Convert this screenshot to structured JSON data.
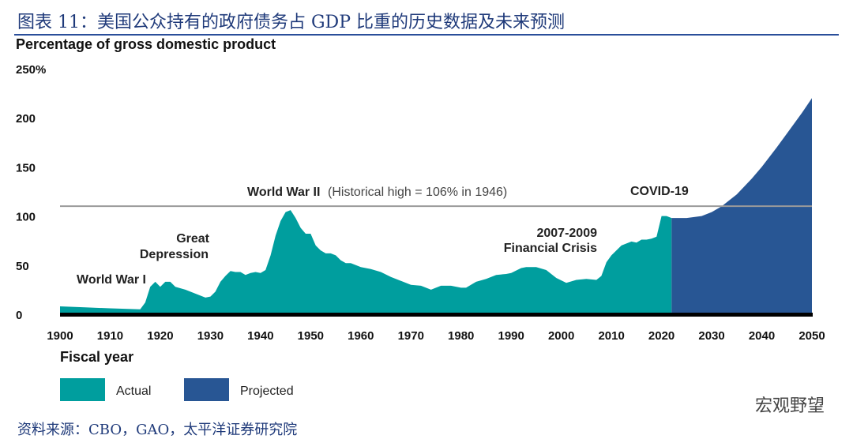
{
  "header": {
    "title": "图表 11：美国公众持有的政府债务占 GDP 比重的历史数据及未来预测"
  },
  "footer": {
    "source": "资料来源：CBO，GAO，太平洋证券研究院",
    "watermark": "宏观野望"
  },
  "chart_data": {
    "type": "area",
    "ylabel": "Percentage of gross domestic product",
    "xlabel": "Fiscal year",
    "xlim": [
      1900,
      2050
    ],
    "ylim": [
      0,
      250
    ],
    "yticks": [
      "0",
      "50",
      "100",
      "150",
      "200",
      "250%"
    ],
    "ytick_values": [
      0,
      50,
      100,
      150,
      200,
      250
    ],
    "xticks": [
      1900,
      1910,
      1920,
      1930,
      1940,
      1950,
      1960,
      1970,
      1980,
      1990,
      2000,
      2010,
      2020,
      2030,
      2040,
      2050
    ],
    "reference_line": {
      "value": 106
    },
    "annotations": [
      {
        "text": "World War I"
      },
      {
        "text": "Great"
      },
      {
        "text": "Depression"
      },
      {
        "text": "World War II"
      },
      {
        "text": "(Historical high = 106% in 1946)"
      },
      {
        "text": "2007-2009"
      },
      {
        "text": "Financial Crisis"
      },
      {
        "text": "COVID-19"
      }
    ],
    "colors": {
      "Actual": "#009e9e",
      "Projected": "#285694",
      "reference": "#9a9a9a"
    },
    "series": [
      {
        "name": "Actual",
        "x": [
          1900,
          1905,
          1910,
          1916,
          1917,
          1918,
          1919,
          1920,
          1921,
          1922,
          1923,
          1925,
          1927,
          1929,
          1930,
          1931,
          1932,
          1933,
          1934,
          1935,
          1936,
          1937,
          1938,
          1939,
          1940,
          1941,
          1942,
          1943,
          1944,
          1945,
          1946,
          1947,
          1948,
          1949,
          1950,
          1951,
          1952,
          1953,
          1954,
          1955,
          1956,
          1957,
          1958,
          1959,
          1960,
          1962,
          1964,
          1966,
          1968,
          1970,
          1972,
          1974,
          1976,
          1978,
          1980,
          1981,
          1983,
          1985,
          1987,
          1989,
          1990,
          1992,
          1993,
          1995,
          1997,
          1999,
          2001,
          2003,
          2005,
          2007,
          2008,
          2009,
          2010,
          2012,
          2014,
          2015,
          2016,
          2017,
          2018,
          2019,
          2020,
          2021,
          2022
        ],
        "values": [
          8,
          7,
          6,
          5,
          12,
          28,
          33,
          28,
          33,
          33,
          28,
          25,
          21,
          17,
          18,
          23,
          33,
          39,
          44,
          43,
          43,
          40,
          42,
          43,
          42,
          45,
          60,
          80,
          95,
          104,
          106,
          98,
          88,
          82,
          82,
          70,
          65,
          62,
          62,
          60,
          55,
          52,
          52,
          50,
          48,
          46,
          43,
          38,
          34,
          30,
          29,
          25,
          29,
          29,
          27,
          27,
          33,
          36,
          40,
          41,
          42,
          47,
          48,
          48,
          45,
          37,
          32,
          35,
          36,
          35,
          39,
          53,
          60,
          70,
          74,
          73,
          76,
          76,
          77,
          79,
          100,
          100,
          98
        ]
      },
      {
        "name": "Projected",
        "x": [
          2022,
          2025,
          2028,
          2030,
          2032,
          2035,
          2038,
          2040,
          2043,
          2045,
          2048,
          2050
        ],
        "values": [
          98,
          98,
          100,
          104,
          110,
          122,
          138,
          150,
          170,
          184,
          205,
          220
        ]
      }
    ]
  }
}
